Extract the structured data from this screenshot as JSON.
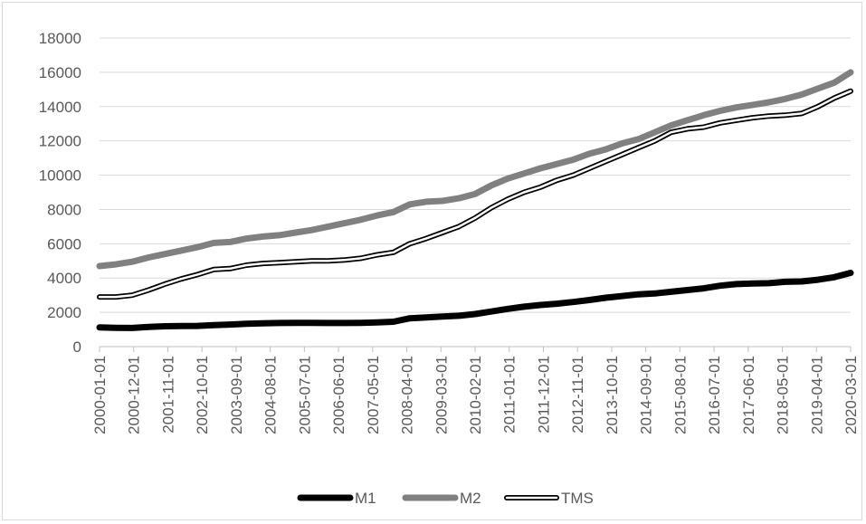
{
  "chart_data": {
    "type": "line",
    "title": "",
    "xlabel": "",
    "ylabel": "",
    "ylim": [
      0,
      18000
    ],
    "yticks": [
      0,
      2000,
      4000,
      6000,
      8000,
      10000,
      12000,
      14000,
      16000,
      18000
    ],
    "xticks": [
      "2000-01-01",
      "2000-12-01",
      "2001-11-01",
      "2002-10-01",
      "2003-09-01",
      "2004-08-01",
      "2005-07-01",
      "2006-06-01",
      "2007-05-01",
      "2008-04-01",
      "2009-03-01",
      "2010-02-01",
      "2011-01-01",
      "2011-12-01",
      "2012-11-01",
      "2013-10-01",
      "2014-09-01",
      "2015-08-01",
      "2016-07-01",
      "2017-06-01",
      "2018-05-01",
      "2019-04-01",
      "2020-03-01"
    ],
    "grid": "horizontal",
    "legend_position": "bottom",
    "series": [
      {
        "name": "M1",
        "color": "#000000",
        "style": "thick-solid",
        "values": [
          1120,
          1100,
          1090,
          1150,
          1190,
          1200,
          1210,
          1250,
          1290,
          1330,
          1360,
          1380,
          1390,
          1390,
          1380,
          1380,
          1390,
          1410,
          1450,
          1650,
          1700,
          1750,
          1800,
          1900,
          2050,
          2200,
          2330,
          2430,
          2500,
          2600,
          2720,
          2850,
          2950,
          3050,
          3100,
          3200,
          3300,
          3400,
          3550,
          3650,
          3680,
          3700,
          3780,
          3800,
          3900,
          4050,
          4300
        ]
      },
      {
        "name": "M2",
        "color": "#808080",
        "style": "thick-solid",
        "values": [
          4700,
          4800,
          4950,
          5200,
          5400,
          5600,
          5800,
          6050,
          6100,
          6300,
          6420,
          6500,
          6650,
          6800,
          7000,
          7200,
          7400,
          7650,
          7850,
          8300,
          8450,
          8500,
          8650,
          8900,
          9400,
          9800,
          10100,
          10400,
          10650,
          10900,
          11250,
          11500,
          11850,
          12100,
          12500,
          12900,
          13200,
          13500,
          13750,
          13950,
          14100,
          14250,
          14450,
          14700,
          15050,
          15400,
          16000
        ]
      },
      {
        "name": "TMS",
        "color": "#000000",
        "style": "double-outline",
        "values": [
          2900,
          2900,
          3000,
          3300,
          3650,
          3950,
          4200,
          4500,
          4550,
          4750,
          4850,
          4900,
          4950,
          5000,
          5000,
          5050,
          5150,
          5350,
          5500,
          6000,
          6300,
          6650,
          7000,
          7500,
          8100,
          8600,
          9000,
          9300,
          9700,
          10000,
          10400,
          10800,
          11200,
          11600,
          12000,
          12500,
          12700,
          12800,
          13050,
          13200,
          13350,
          13450,
          13500,
          13600,
          14000,
          14500,
          14900
        ]
      }
    ]
  }
}
